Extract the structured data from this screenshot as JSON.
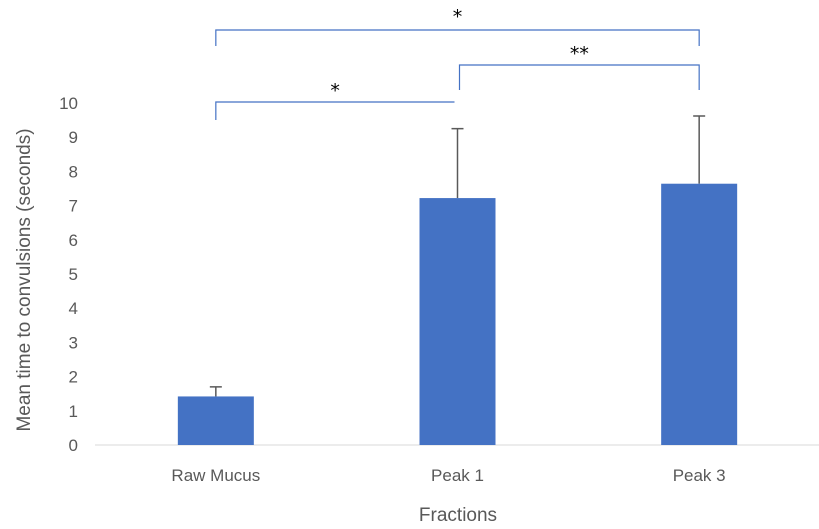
{
  "chart_data": {
    "type": "bar",
    "categories": [
      "Raw Mucus",
      "Peak 1",
      "Peak 3"
    ],
    "values": [
      1.42,
      7.22,
      7.64
    ],
    "error_upper": [
      1.7,
      9.25,
      9.62
    ],
    "xlabel": "Fractions",
    "ylabel": "Mean time to convulsions (seconds)",
    "ylim": [
      0,
      10
    ],
    "yticks": [
      "0",
      "1",
      "2",
      "3",
      "4",
      "5",
      "6",
      "7",
      "8",
      "9",
      "10"
    ],
    "grid": false,
    "legend": "none",
    "bar_color": "#4472c4",
    "bracket_color": "#4472c4",
    "significance": [
      {
        "from": "Raw Mucus",
        "to": "Peak 1",
        "label": "*"
      },
      {
        "from": "Peak 1",
        "to": "Peak 3",
        "label": "**"
      },
      {
        "from": "Raw Mucus",
        "to": "Peak 3",
        "label": "*"
      }
    ]
  }
}
